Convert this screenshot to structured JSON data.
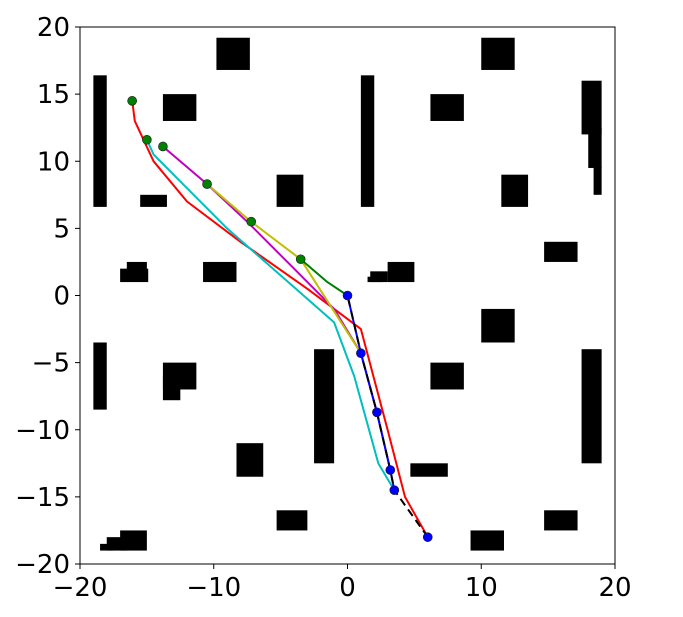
{
  "chart_data": {
    "type": "scatter",
    "title": "",
    "xlabel": "",
    "ylabel": "",
    "xlim": [
      -20,
      20
    ],
    "ylim": [
      -20,
      20
    ],
    "grid": false,
    "legend": false,
    "x_ticks": [
      {
        "value": -20,
        "label": "−20"
      },
      {
        "value": -10,
        "label": "−10"
      },
      {
        "value": 0,
        "label": "0"
      },
      {
        "value": 10,
        "label": "10"
      },
      {
        "value": 20,
        "label": "20"
      }
    ],
    "y_ticks": [
      {
        "value": 20,
        "label": "20"
      },
      {
        "value": 15,
        "label": "15"
      },
      {
        "value": 10,
        "label": "10"
      },
      {
        "value": 5,
        "label": "5"
      },
      {
        "value": 0,
        "label": "0"
      },
      {
        "value": -5,
        "label": "−5"
      },
      {
        "value": -10,
        "label": "−10"
      },
      {
        "value": -15,
        "label": "−15"
      },
      {
        "value": -20,
        "label": "−20"
      }
    ],
    "obstacles": [
      {
        "x": [
          -9.8,
          -7.3
        ],
        "y": [
          16.8,
          19.2
        ]
      },
      {
        "x": [
          10.0,
          12.5
        ],
        "y": [
          16.8,
          19.2
        ]
      },
      {
        "x": [
          -19.0,
          -18.0
        ],
        "y": [
          6.6,
          16.4
        ]
      },
      {
        "x": [
          -13.8,
          -11.3
        ],
        "y": [
          13.0,
          15.0
        ]
      },
      {
        "x": [
          1.0,
          2.0
        ],
        "y": [
          6.6,
          16.4
        ]
      },
      {
        "x": [
          6.2,
          8.7
        ],
        "y": [
          13.0,
          15.0
        ]
      },
      {
        "x": [
          17.5,
          19.0
        ],
        "y": [
          12.0,
          16.0
        ]
      },
      {
        "x": [
          18.0,
          19.0
        ],
        "y": [
          9.5,
          12.5
        ]
      },
      {
        "x": [
          18.4,
          19.0
        ],
        "y": [
          7.5,
          9.6
        ]
      },
      {
        "x": [
          -15.5,
          -13.5
        ],
        "y": [
          6.6,
          7.5
        ]
      },
      {
        "x": [
          -5.3,
          -3.3
        ],
        "y": [
          6.6,
          9.0
        ]
      },
      {
        "x": [
          11.5,
          13.5
        ],
        "y": [
          6.6,
          9.0
        ]
      },
      {
        "x": [
          14.7,
          17.2
        ],
        "y": [
          2.5,
          4.0
        ]
      },
      {
        "x": [
          -16.5,
          -15.0
        ],
        "y": [
          1.8,
          2.5
        ]
      },
      {
        "x": [
          -17.0,
          -14.9
        ],
        "y": [
          1.0,
          2.0
        ]
      },
      {
        "x": [
          -10.8,
          -8.3
        ],
        "y": [
          1.0,
          2.5
        ]
      },
      {
        "x": [
          1.7,
          3.0
        ],
        "y": [
          1.0,
          1.8
        ]
      },
      {
        "x": [
          1.5,
          2.6
        ],
        "y": [
          1.0,
          1.4
        ]
      },
      {
        "x": [
          3.0,
          5.0
        ],
        "y": [
          1.0,
          2.5
        ]
      },
      {
        "x": [
          10.0,
          12.5
        ],
        "y": [
          -3.5,
          -1.0
        ]
      },
      {
        "x": [
          -19.0,
          -18.0
        ],
        "y": [
          -8.5,
          -3.5
        ]
      },
      {
        "x": [
          -13.8,
          -11.3
        ],
        "y": [
          -7.0,
          -5.0
        ]
      },
      {
        "x": [
          -13.8,
          -12.5
        ],
        "y": [
          -7.8,
          -6.0
        ]
      },
      {
        "x": [
          -2.5,
          -1.0
        ],
        "y": [
          -12.5,
          -4.0
        ]
      },
      {
        "x": [
          6.2,
          8.7
        ],
        "y": [
          -7.0,
          -5.0
        ]
      },
      {
        "x": [
          17.5,
          19.0
        ],
        "y": [
          -12.5,
          -4.0
        ]
      },
      {
        "x": [
          -8.3,
          -6.3
        ],
        "y": [
          -13.5,
          -11.0
        ]
      },
      {
        "x": [
          4.7,
          7.5
        ],
        "y": [
          -13.5,
          -12.5
        ]
      },
      {
        "x": [
          -5.3,
          -3.0
        ],
        "y": [
          -17.5,
          -16.0
        ]
      },
      {
        "x": [
          14.7,
          17.2
        ],
        "y": [
          -17.5,
          -16.0
        ]
      },
      {
        "x": [
          -17.0,
          -15.0
        ],
        "y": [
          -19.0,
          -17.5
        ]
      },
      {
        "x": [
          -18.0,
          -16.5
        ],
        "y": [
          -19.0,
          -18.0
        ]
      },
      {
        "x": [
          -18.5,
          -17.5
        ],
        "y": [
          -19.0,
          -18.5
        ]
      },
      {
        "x": [
          9.2,
          11.7
        ],
        "y": [
          -19.0,
          -17.5
        ]
      }
    ],
    "series": [
      {
        "color": "#ff0000",
        "style": "solid",
        "x": [
          6.0,
          4.3,
          3.0,
          1.0,
          -3.0,
          -8.0,
          -12.0,
          -14.5,
          -15.9,
          -16.1
        ],
        "y": [
          -18.0,
          -15.0,
          -10.0,
          -2.5,
          0.5,
          4.0,
          7.0,
          10.0,
          13.0,
          14.5
        ]
      },
      {
        "color": "#00bfbf",
        "style": "solid",
        "x": [
          3.5,
          2.3,
          0.5,
          -1.0,
          -5.0,
          -9.0,
          -12.5,
          -14.5,
          -15.0
        ],
        "y": [
          -14.5,
          -12.5,
          -6.0,
          -2.0,
          1.5,
          5.0,
          8.5,
          10.5,
          11.6
        ]
      },
      {
        "color": "#bf00bf",
        "style": "solid",
        "x": [
          3.2,
          2.2,
          1.0,
          -1.0,
          -4.0,
          -7.5,
          -10.5,
          -13.8
        ],
        "y": [
          -13.0,
          -8.7,
          -4.3,
          -1.0,
          2.0,
          5.5,
          8.3,
          11.1
        ]
      },
      {
        "color": "#bfbf00",
        "style": "solid",
        "x": [
          1.0,
          -3.5,
          -7.2,
          -10.5
        ],
        "y": [
          -4.3,
          2.7,
          5.5,
          8.3
        ]
      },
      {
        "color": "#008000",
        "style": "solid",
        "x": [
          0.0,
          -1.5,
          -3.5
        ],
        "y": [
          0.0,
          1.0,
          2.7
        ]
      },
      {
        "color": "#0000ff",
        "style": "solid",
        "x": [
          3.5,
          3.2,
          2.2,
          1.0,
          0.0
        ],
        "y": [
          -14.5,
          -13.0,
          -8.7,
          -4.3,
          0.0
        ]
      },
      {
        "color": "#000000",
        "style": "dashed",
        "x": [
          6.0,
          3.5,
          3.2,
          2.2,
          1.0,
          0.0
        ],
        "y": [
          -18.0,
          -14.5,
          -13.0,
          -8.7,
          -4.3,
          0.0
        ]
      }
    ],
    "points": [
      {
        "color": "#0000ff",
        "x": [
          0.0,
          1.0,
          2.2,
          3.2,
          3.5,
          6.0
        ],
        "y": [
          0.0,
          -4.3,
          -8.7,
          -13.0,
          -14.5,
          -18.0
        ]
      },
      {
        "color": "#008000",
        "x": [
          -16.1,
          -15.0,
          -13.8,
          -10.5,
          -7.2,
          -3.5
        ],
        "y": [
          14.5,
          11.6,
          11.1,
          8.3,
          5.5,
          2.7
        ]
      }
    ]
  }
}
